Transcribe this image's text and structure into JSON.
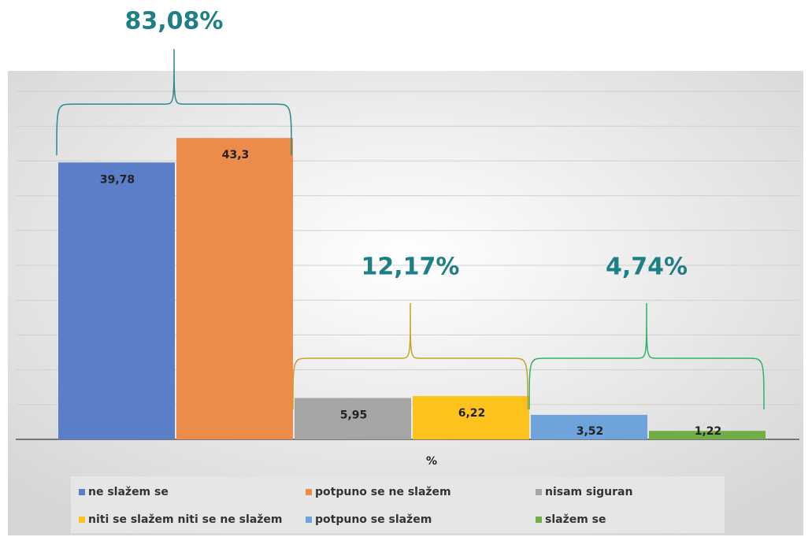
{
  "chart_data": {
    "type": "bar",
    "categories": [
      "%"
    ],
    "series": [
      {
        "name": "ne slažem se",
        "color": "#5b7ec9",
        "values": [
          39.78
        ],
        "value_labels": [
          "39,78"
        ]
      },
      {
        "name": "potpuno se ne slažem",
        "color": "#ed8b4a",
        "values": [
          43.3
        ],
        "value_labels": [
          "43,3"
        ]
      },
      {
        "name": "nisam siguran",
        "color": "#a5a5a5",
        "values": [
          5.95
        ],
        "value_labels": [
          "5,95"
        ]
      },
      {
        "name": "niti se slažem niti se ne slažem",
        "color": "#fdc21b",
        "values": [
          6.22
        ],
        "value_labels": [
          "6,22"
        ]
      },
      {
        "name": "potpuno se slažem",
        "color": "#6fa3dc",
        "values": [
          3.52
        ],
        "value_labels": [
          "3,52"
        ]
      },
      {
        "name": "slažem se",
        "color": "#70ad47",
        "values": [
          1.22
        ],
        "value_labels": [
          "1,22"
        ]
      }
    ],
    "annotations": [
      {
        "text": "83,08%",
        "color": "#2a8a8a"
      },
      {
        "text": "12,17%",
        "color": "#c9a227"
      },
      {
        "text": "4,74%",
        "color": "#2fb36a"
      }
    ],
    "ylim": [
      0,
      50
    ],
    "yticks": [
      0,
      5,
      10,
      15,
      20,
      25,
      30,
      35,
      40,
      45,
      50
    ],
    "grid": true
  }
}
